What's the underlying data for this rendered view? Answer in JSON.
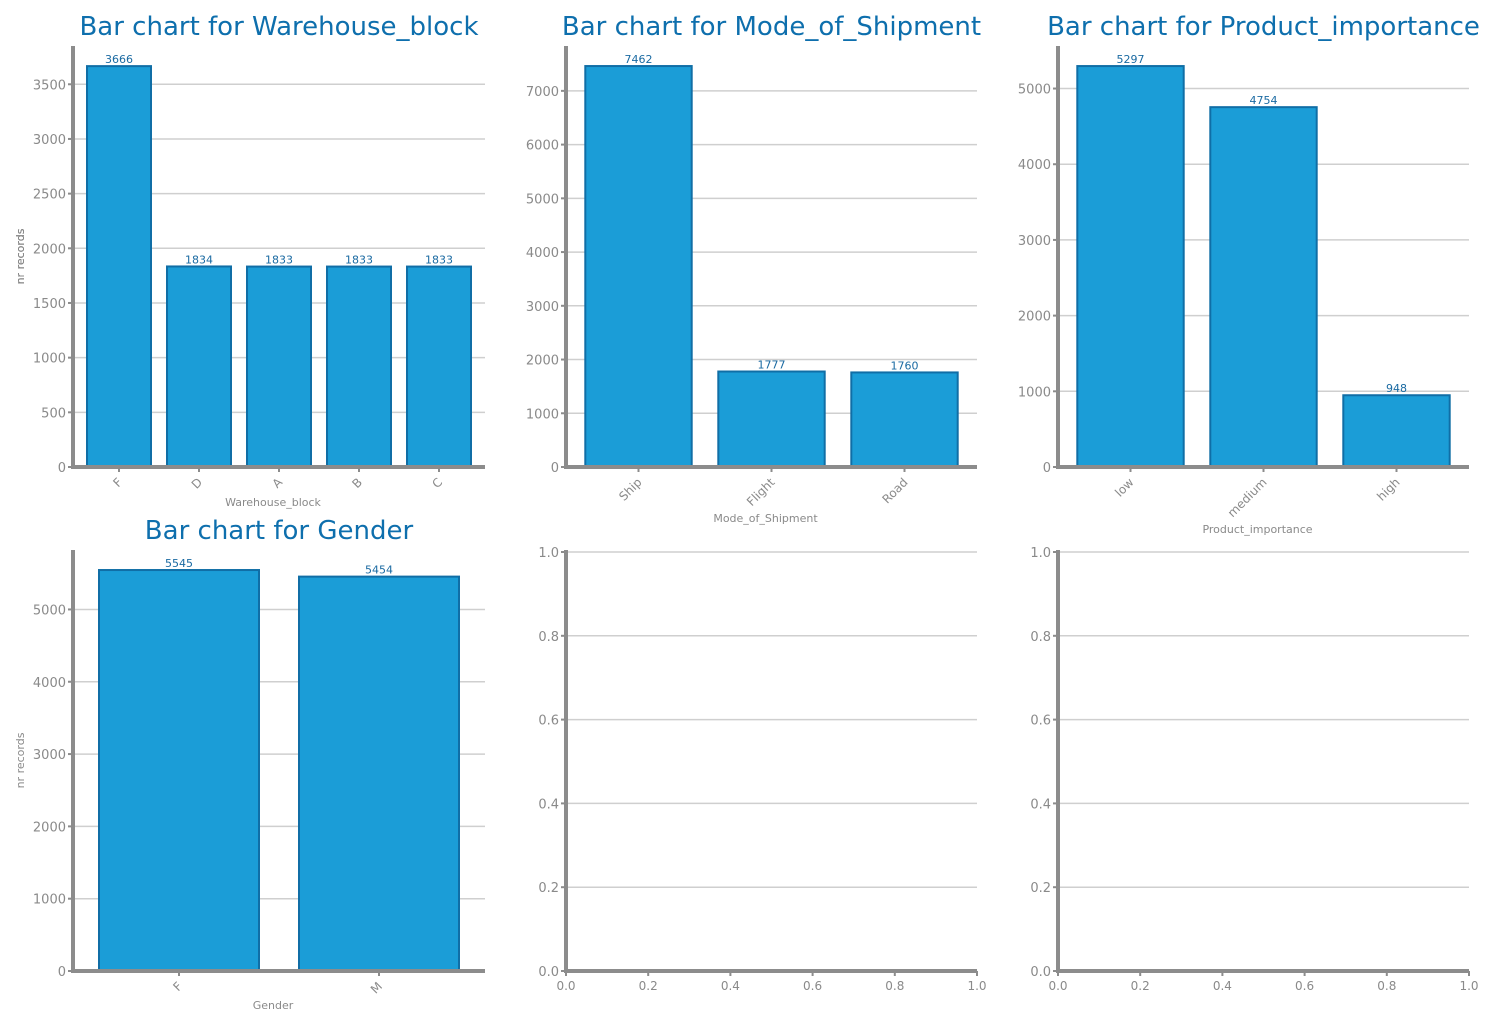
{
  "chart_data": [
    {
      "type": "bar",
      "title": "Bar chart for Warehouse_block",
      "xlabel": "Warehouse_block",
      "ylabel": "nr records",
      "categories": [
        "F",
        "D",
        "A",
        "B",
        "C"
      ],
      "values": [
        3666,
        1834,
        1833,
        1833,
        1833
      ],
      "ylim": [
        0,
        3850
      ],
      "yticks": [
        0,
        500,
        1000,
        1500,
        2000,
        2500,
        3000,
        3500
      ],
      "grid": true
    },
    {
      "type": "bar",
      "title": "Bar chart for Mode_of_Shipment",
      "xlabel": "Mode_of_Shipment",
      "ylabel": "nr records",
      "categories": [
        "Ship",
        "Flight",
        "Road"
      ],
      "values": [
        7462,
        1777,
        1760
      ],
      "ylim": [
        0,
        7835
      ],
      "yticks": [
        0,
        1000,
        2000,
        3000,
        4000,
        5000,
        6000,
        7000
      ],
      "grid": true
    },
    {
      "type": "bar",
      "title": "Bar chart for Product_importance",
      "xlabel": "Product_importance",
      "ylabel": "nr records",
      "categories": [
        "low",
        "medium",
        "high"
      ],
      "values": [
        5297,
        4754,
        948
      ],
      "ylim": [
        0,
        5562
      ],
      "yticks": [
        0,
        1000,
        2000,
        3000,
        4000,
        5000
      ],
      "grid": true
    },
    {
      "type": "bar",
      "title": "Bar chart for Gender",
      "xlabel": "Gender",
      "ylabel": "nr records",
      "categories": [
        "F",
        "M"
      ],
      "values": [
        5545,
        5454
      ],
      "ylim": [
        0,
        5822
      ],
      "yticks": [
        0,
        1000,
        2000,
        3000,
        4000,
        5000
      ],
      "grid": true
    },
    {
      "type": "empty",
      "title": "",
      "xlim": [
        0,
        1
      ],
      "ylim": [
        0,
        1
      ],
      "xticks": [
        "0.0",
        "0.2",
        "0.4",
        "0.6",
        "0.8",
        "1.0"
      ],
      "yticks": [
        "0.0",
        "0.2",
        "0.4",
        "0.6",
        "0.8",
        "1.0"
      ],
      "grid": true
    },
    {
      "type": "empty",
      "title": "",
      "xlim": [
        0,
        1
      ],
      "ylim": [
        0,
        1
      ],
      "xticks": [
        "0.0",
        "0.2",
        "0.4",
        "0.6",
        "0.8",
        "1.0"
      ],
      "yticks": [
        "0.0",
        "0.2",
        "0.4",
        "0.6",
        "0.8",
        "1.0"
      ],
      "grid": true
    }
  ]
}
